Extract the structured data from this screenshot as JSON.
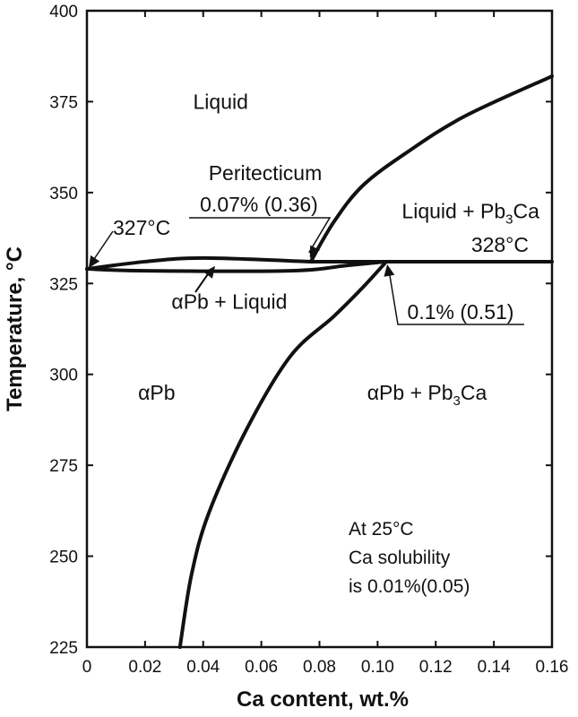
{
  "chart_data": {
    "type": "line",
    "title": "",
    "xlabel": "Ca content, wt.%",
    "ylabel": "Temperature, °C",
    "xlim": [
      0,
      0.16
    ],
    "ylim": [
      225,
      400
    ],
    "x_ticks": [
      "0",
      "0.02",
      "0.04",
      "0.06",
      "0.08",
      "0.10",
      "0.12",
      "0.14",
      "0.16"
    ],
    "y_ticks": [
      "225",
      "250",
      "275",
      "300",
      "325",
      "350",
      "375",
      "400"
    ],
    "grid": false,
    "lines": [
      {
        "id": "liquidus_pb3ca",
        "points": [
          [
            0.077,
            331
          ],
          [
            0.085,
            342
          ],
          [
            0.095,
            352
          ],
          [
            0.11,
            361
          ],
          [
            0.13,
            371
          ],
          [
            0.16,
            382
          ]
        ]
      },
      {
        "id": "peritectic_isotherm",
        "points": [
          [
            0.077,
            331
          ],
          [
            0.103,
            331
          ],
          [
            0.16,
            331
          ]
        ]
      },
      {
        "id": "liquidus_alpha",
        "points": [
          [
            0,
            329
          ],
          [
            0.02,
            331
          ],
          [
            0.04,
            332
          ],
          [
            0.077,
            331
          ]
        ]
      },
      {
        "id": "solidus_alpha",
        "points": [
          [
            0,
            329
          ],
          [
            0.02,
            328.5
          ],
          [
            0.07,
            328.5
          ],
          [
            0.09,
            330
          ],
          [
            0.103,
            331
          ]
        ]
      },
      {
        "id": "solvus",
        "points": [
          [
            0.103,
            331
          ],
          [
            0.095,
            324
          ],
          [
            0.085,
            316
          ],
          [
            0.07,
            305
          ],
          [
            0.055,
            285
          ],
          [
            0.042,
            262
          ],
          [
            0.036,
            245
          ],
          [
            0.032,
            225
          ]
        ]
      }
    ],
    "regions": [
      {
        "label": "Liquid",
        "x": 0.046,
        "y": 373
      },
      {
        "label": "αPb + Liquid",
        "x": 0.049,
        "y": 318
      },
      {
        "label": "αPb",
        "x": 0.024,
        "y": 293
      },
      {
        "label": "αPb + Pb",
        "sub": "3",
        "suffix": "Ca",
        "x": 0.117,
        "y": 293
      },
      {
        "label": "Liquid + Pb",
        "sub": "3",
        "suffix": "Ca",
        "x": 0.132,
        "y": 343
      }
    ],
    "annotations": {
      "peritectic_title": "Peritecticum",
      "peritectic_comp": "0.07% (0.36)",
      "eutectic_left_temp": "327°C",
      "isotherm_temp": "328°C",
      "solubility_max": "0.1% (0.51)",
      "room_temp_note": [
        "At 25°C",
        "Ca solubility",
        "is 0.01%(0.05)"
      ]
    }
  }
}
